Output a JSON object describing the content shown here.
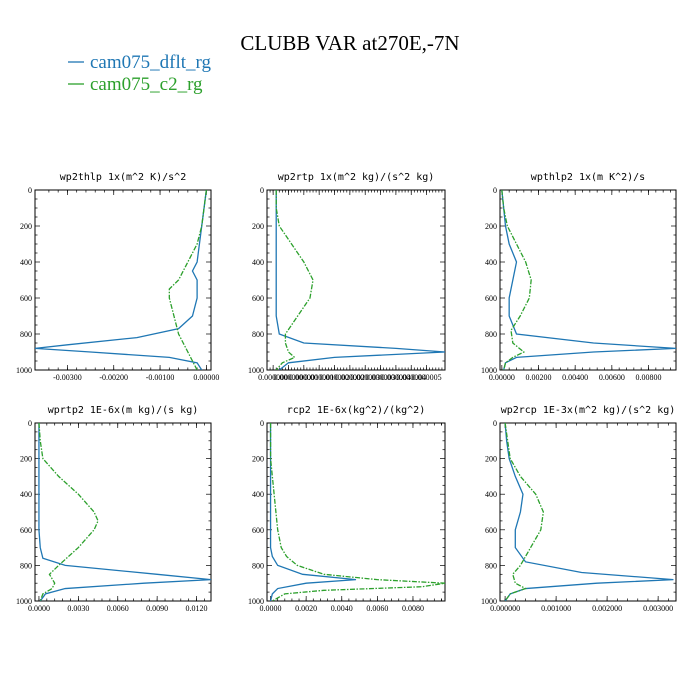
{
  "chart_data": {
    "type": "line",
    "title": "CLUBB VAR at270E,-7N",
    "legend": [
      {
        "name": "cam075_dflt_rg",
        "color": "#1f77b4",
        "dash": "solid"
      },
      {
        "name": "cam075_c2_rg",
        "color": "#2ca02c",
        "dash": "dashdot"
      }
    ],
    "panels": [
      {
        "title": "wp2thlp  1x(m^2 K)/s^2",
        "xlim": [
          -0.0037,
          0.0001
        ],
        "xticks": [
          -0.003,
          -0.002,
          -0.001,
          0.0
        ],
        "xticklabels": [
          "-0.00300",
          "-0.00200",
          "-0.00100",
          "0.00000"
        ],
        "ylim": [
          1000,
          0
        ],
        "yticks": [
          0,
          200,
          400,
          600,
          800,
          1000
        ],
        "yticklabels": [
          "0",
          "200",
          "400",
          "600",
          "800",
          "1000"
        ],
        "series": [
          {
            "name": "cam075_dflt_rg",
            "y": [
              0,
              100,
              200,
              300,
              400,
              450,
              500,
              600,
              700,
              770,
              820,
              860,
              880,
              900,
              930,
              960,
              1000
            ],
            "x": [
              0.0,
              -5e-05,
              -0.0001,
              -0.00015,
              -0.0002,
              -0.0003,
              -0.0002,
              -0.0002,
              -0.0003,
              -0.0006,
              -0.0015,
              -0.003,
              -0.0037,
              -0.0025,
              -0.0008,
              -0.0002,
              -0.0001
            ]
          },
          {
            "name": "cam075_c2_rg",
            "y": [
              0,
              100,
              200,
              300,
              400,
              500,
              550,
              600,
              700,
              800,
              850,
              900,
              950,
              1000
            ],
            "x": [
              0.0,
              -5e-05,
              -0.0001,
              -0.0002,
              -0.0004,
              -0.0006,
              -0.0008,
              -0.0008,
              -0.0007,
              -0.0006,
              -0.0005,
              -0.0004,
              -0.0003,
              -0.0002
            ]
          }
        ]
      },
      {
        "title": "wp2rtp  1x(m^2 kg)/(s^2 kg)",
        "xlim": [
          -2e-07,
          5.6e-06
        ],
        "xticks": [
          0.0,
          5e-07,
          1e-06,
          1.5e-06,
          2e-06,
          2.5e-06,
          3e-06,
          3.5e-06,
          4e-06,
          4.5e-06,
          5e-06
        ],
        "xticklabels": [
          "0.000000",
          "0.000000",
          "0.000001",
          "0.000001",
          "0.000002",
          "0.000002",
          "0.000003",
          "0.000003",
          "0.000004",
          "0.000004",
          "0.000005"
        ],
        "ylim": [
          1000,
          0
        ],
        "yticks": [
          0,
          200,
          400,
          600,
          800,
          1000
        ],
        "yticklabels": [
          "0",
          "200",
          "400",
          "600",
          "800",
          "1000"
        ],
        "series": [
          {
            "name": "cam075_dflt_rg",
            "y": [
              0,
              200,
              400,
              600,
              700,
              800,
              850,
              880,
              900,
              930,
              960,
              1000
            ],
            "x": [
              1e-07,
              1e-07,
              1e-07,
              1e-07,
              1e-07,
              2e-07,
              1e-06,
              4e-06,
              5.6e-06,
              2e-06,
              5e-07,
              2e-07
            ]
          },
          {
            "name": "cam075_c2_rg",
            "y": [
              0,
              100,
              200,
              300,
              400,
              500,
              600,
              700,
              800,
              850,
              900,
              930,
              960,
              1000
            ],
            "x": [
              1e-07,
              1e-07,
              2e-07,
              6e-07,
              1e-06,
              1.3e-06,
              1.2e-06,
              8e-07,
              4e-07,
              4e-07,
              5e-07,
              7e-07,
              3e-07,
              1e-07
            ]
          }
        ]
      },
      {
        "title": "wpthlp2  1x(m K^2)/s",
        "xlim": [
          -0.0001,
          0.0095
        ],
        "xticks": [
          0.0,
          0.002,
          0.004,
          0.006,
          0.008
        ],
        "xticklabels": [
          "0.00000",
          "0.00200",
          "0.00400",
          "0.00600",
          "0.00800"
        ],
        "ylim": [
          1000,
          0
        ],
        "yticks": [
          0,
          200,
          400,
          600,
          800,
          1000
        ],
        "yticklabels": [
          "0",
          "200",
          "400",
          "600",
          "800",
          "1000"
        ],
        "series": [
          {
            "name": "cam075_dflt_rg",
            "y": [
              0,
              100,
              200,
              300,
              400,
              500,
              600,
              700,
              800,
              850,
              880,
              900,
              930,
              960,
              1000
            ],
            "x": [
              0.0,
              0.0001,
              0.0002,
              0.0004,
              0.0008,
              0.0006,
              0.0004,
              0.0004,
              0.0008,
              0.005,
              0.0095,
              0.005,
              0.0008,
              0.0002,
              0.0001
            ]
          },
          {
            "name": "cam075_c2_rg",
            "y": [
              0,
              100,
              200,
              300,
              400,
              500,
              600,
              700,
              780,
              850,
              900,
              930,
              960,
              1000
            ],
            "x": [
              0.0,
              0.0001,
              0.0003,
              0.0008,
              0.0013,
              0.0016,
              0.0015,
              0.001,
              0.0005,
              0.0006,
              0.0012,
              0.0006,
              0.0002,
              0.0001
            ]
          }
        ]
      },
      {
        "title": "wprtp2  1E-6x(m kg)/(s kg)",
        "xlim": [
          -0.0003,
          0.0131
        ],
        "xticks": [
          0.0,
          0.003,
          0.006,
          0.009,
          0.012
        ],
        "xticklabels": [
          "0.0000",
          "0.0030",
          "0.0060",
          "0.0090",
          "0.0120"
        ],
        "ylim": [
          1000,
          0
        ],
        "yticks": [
          0,
          200,
          400,
          600,
          800,
          1000
        ],
        "yticklabels": [
          "0",
          "200",
          "400",
          "600",
          "800",
          "1000"
        ],
        "series": [
          {
            "name": "cam075_dflt_rg",
            "y": [
              0,
              200,
              400,
              600,
              700,
              760,
              800,
              850,
              880,
              900,
              930,
              960,
              1000
            ],
            "x": [
              0.0,
              0.0,
              0.0,
              0.0,
              0.0001,
              0.0003,
              0.002,
              0.009,
              0.0131,
              0.008,
              0.002,
              0.0005,
              0.0001
            ]
          },
          {
            "name": "cam075_c2_rg",
            "y": [
              0,
              100,
              200,
              300,
              400,
              500,
              550,
              600,
              700,
              800,
              850,
              900,
              930,
              960,
              1000
            ],
            "x": [
              0.0,
              0.0001,
              0.0003,
              0.0015,
              0.003,
              0.0042,
              0.0045,
              0.0042,
              0.003,
              0.0015,
              0.0008,
              0.0012,
              0.001,
              0.0003,
              0.0001
            ]
          }
        ]
      },
      {
        "title": "rcp2  1E-6x(kg^2)/(kg^2)",
        "xlim": [
          -0.0002,
          0.0098
        ],
        "xticks": [
          0.0,
          0.002,
          0.004,
          0.006,
          0.008
        ],
        "xticklabels": [
          "0.0000",
          "0.0020",
          "0.0040",
          "0.0060",
          "0.0080"
        ],
        "ylim": [
          1000,
          0
        ],
        "yticks": [
          0,
          200,
          400,
          600,
          800,
          1000
        ],
        "yticklabels": [
          "0",
          "200",
          "400",
          "600",
          "800",
          "1000"
        ],
        "series": [
          {
            "name": "cam075_dflt_rg",
            "y": [
              0,
              200,
              400,
              600,
              700,
              750,
              800,
              850,
              880,
              900,
              930,
              960,
              1000
            ],
            "x": [
              0.0,
              0.0,
              0.0,
              0.0,
              0.0,
              0.0001,
              0.0004,
              0.0018,
              0.0048,
              0.002,
              0.0004,
              0.0001,
              0.0
            ]
          },
          {
            "name": "cam075_c2_rg",
            "y": [
              0,
              200,
              300,
              400,
              500,
              600,
              700,
              750,
              800,
              850,
              880,
              900,
              920,
              940,
              960,
              1000
            ],
            "x": [
              0.0,
              0.0,
              0.0001,
              0.0002,
              0.0003,
              0.0004,
              0.0006,
              0.0009,
              0.0015,
              0.003,
              0.006,
              0.0098,
              0.0085,
              0.003,
              0.0008,
              0.0001
            ]
          }
        ]
      },
      {
        "title": "wp2rcp  1E-3x(m^2 kg)/(s^2 kg)",
        "xlim": [
          -0.0001,
          0.00335
        ],
        "xticks": [
          0.0,
          0.001,
          0.002,
          0.003
        ],
        "xticklabels": [
          "0.000000",
          "0.001000",
          "0.002000",
          "0.003000"
        ],
        "ylim": [
          1000,
          0
        ],
        "yticks": [
          0,
          200,
          400,
          600,
          800,
          1000
        ],
        "yticklabels": [
          "0",
          "200",
          "400",
          "600",
          "800",
          "1000"
        ],
        "series": [
          {
            "name": "cam075_dflt_rg",
            "y": [
              0,
              100,
              200,
              300,
              400,
              500,
              600,
              700,
              780,
              840,
              880,
              900,
              930,
              960,
              1000
            ],
            "x": [
              0.0,
              3e-05,
              8e-05,
              0.0002,
              0.00035,
              0.0003,
              0.0002,
              0.0002,
              0.0004,
              0.0015,
              0.0033,
              0.0018,
              0.0004,
              0.0001,
              0.0
            ]
          },
          {
            "name": "cam075_c2_rg",
            "y": [
              0,
              100,
              200,
              300,
              400,
              500,
              600,
              700,
              800,
              850,
              900,
              930,
              960,
              1000
            ],
            "x": [
              0.0,
              5e-05,
              0.0001,
              0.0003,
              0.0006,
              0.00075,
              0.0007,
              0.0005,
              0.0003,
              0.00015,
              0.0002,
              0.0004,
              0.0001,
              0.0
            ]
          }
        ]
      }
    ]
  }
}
